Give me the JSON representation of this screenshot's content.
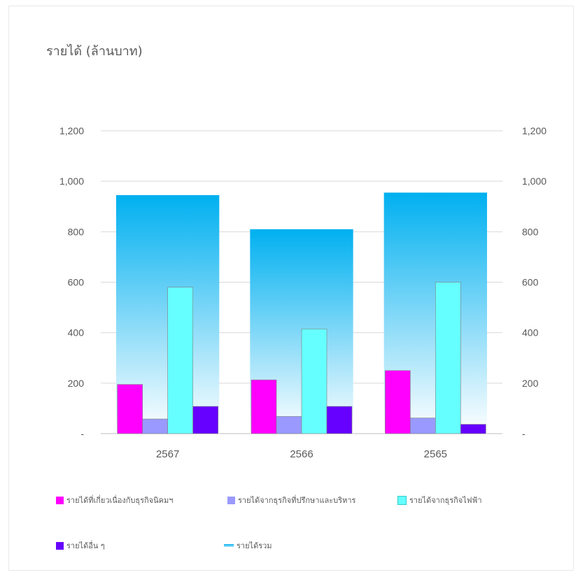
{
  "chart_data": {
    "type": "bar",
    "title": "รายได้ (ล้านบาท)",
    "categories": [
      "2567",
      "2566",
      "2565"
    ],
    "ylim": [
      0,
      1200
    ],
    "yticks": [
      "-",
      "200",
      "400",
      "600",
      "800",
      "1,000",
      "1,200"
    ],
    "ytick_values": [
      0,
      200,
      400,
      600,
      800,
      1000,
      1200
    ],
    "grid": true,
    "legend_position": "bottom",
    "total_series": {
      "name": "รายได้รวม",
      "color": "#00b0f0",
      "values": [
        945,
        810,
        955
      ]
    },
    "series": [
      {
        "name": "รายได้ที่เกี่ยวเนื่องกับธุรกิจนิคมฯ",
        "color": "#ff00ff",
        "values": [
          195,
          213,
          250
        ]
      },
      {
        "name": "รายได้จากธุรกิจที่ปรึกษาและบริหาร",
        "color": "#9999ff",
        "values": [
          58,
          68,
          62
        ]
      },
      {
        "name": "รายได้จากธุรกิจไฟฟ้า",
        "color": "#66ffff",
        "values": [
          580,
          415,
          600
        ]
      },
      {
        "name": "รายได้อื่น ๆ",
        "color": "#6600ff",
        "values": [
          108,
          108,
          37
        ]
      }
    ]
  }
}
